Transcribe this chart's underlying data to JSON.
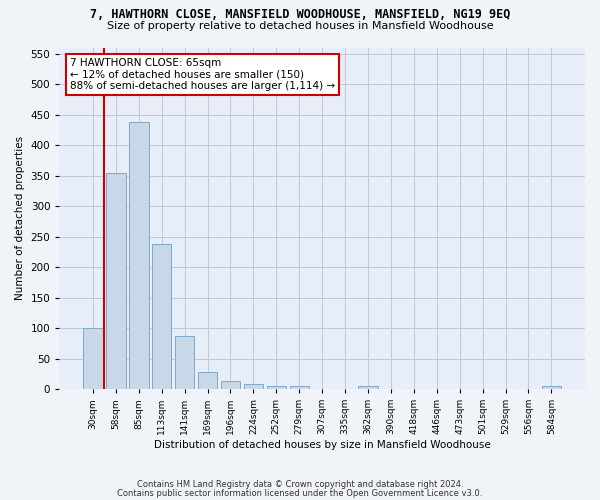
{
  "title_line1": "7, HAWTHORN CLOSE, MANSFIELD WOODHOUSE, MANSFIELD, NG19 9EQ",
  "title_line2": "Size of property relative to detached houses in Mansfield Woodhouse",
  "xlabel": "Distribution of detached houses by size in Mansfield Woodhouse",
  "ylabel": "Number of detached properties",
  "footer_line1": "Contains HM Land Registry data © Crown copyright and database right 2024.",
  "footer_line2": "Contains public sector information licensed under the Open Government Licence v3.0.",
  "bin_labels": [
    "30sqm",
    "58sqm",
    "85sqm",
    "113sqm",
    "141sqm",
    "169sqm",
    "196sqm",
    "224sqm",
    "252sqm",
    "279sqm",
    "307sqm",
    "335sqm",
    "362sqm",
    "390sqm",
    "418sqm",
    "446sqm",
    "473sqm",
    "501sqm",
    "529sqm",
    "556sqm",
    "584sqm"
  ],
  "bar_heights": [
    100,
    355,
    438,
    238,
    87,
    28,
    13,
    9,
    5,
    5,
    0,
    0,
    5,
    0,
    0,
    0,
    0,
    0,
    0,
    0,
    5
  ],
  "bar_color": "#c8d8e8",
  "bar_edge_color": "#7fa8c8",
  "vline_color": "#cc0000",
  "annotation_text": "7 HAWTHORN CLOSE: 65sqm\n← 12% of detached houses are smaller (150)\n88% of semi-detached houses are larger (1,114) →",
  "annotation_box_color": "#ffffff",
  "annotation_box_edge": "#cc0000",
  "ylim": [
    0,
    560
  ],
  "yticks": [
    0,
    50,
    100,
    150,
    200,
    250,
    300,
    350,
    400,
    450,
    500,
    550
  ],
  "grid_color": "#c0c8d8",
  "background_color": "#e8eef8",
  "fig_bg_color": "#f0f4f8"
}
